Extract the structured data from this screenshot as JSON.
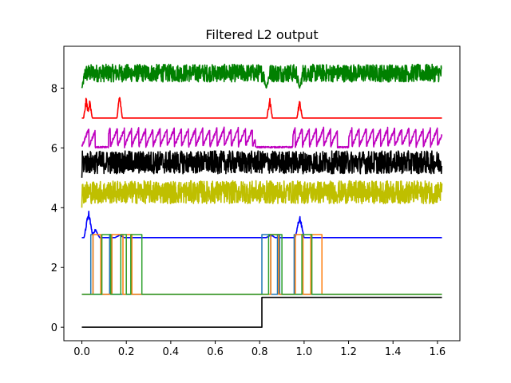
{
  "chart_data": {
    "type": "line",
    "title": "Filtered L2 output",
    "xlabel": "",
    "ylabel": "",
    "xlim": [
      -0.081,
      1.701
    ],
    "ylim": [
      -0.45,
      9.4
    ],
    "xticks": [
      0.0,
      0.2,
      0.4,
      0.6,
      0.8,
      1.0,
      1.2,
      1.4,
      1.6
    ],
    "xtick_labels": [
      "0.0",
      "0.2",
      "0.4",
      "0.6",
      "0.8",
      "1.0",
      "1.2",
      "1.4",
      "1.6"
    ],
    "yticks": [
      0,
      2,
      4,
      6,
      8
    ],
    "ytick_labels": [
      "0",
      "2",
      "4",
      "6",
      "8"
    ],
    "grid": false,
    "legend": "none",
    "series": [
      {
        "color": "#008000",
        "style": "noisy",
        "x_range": [
          0.0,
          1.62
        ],
        "baseline": 8.0,
        "values": {
          "band": [
            8.1,
            8.8
          ],
          "dips": [
            [
              0.0,
              8.0
            ],
            [
              0.83,
              8.0
            ],
            [
              0.98,
              8.0
            ]
          ]
        }
      },
      {
        "color": "#ff0000",
        "style": "spikes",
        "x_range": [
          0.0,
          1.62
        ],
        "baseline": 7.0,
        "values": {
          "spikes": [
            [
              0.02,
              7.75
            ],
            [
              0.035,
              7.65
            ],
            [
              0.17,
              7.9
            ],
            [
              0.845,
              7.8
            ],
            [
              0.98,
              7.7
            ]
          ]
        }
      },
      {
        "color": "#bf00bf",
        "style": "sawtooth",
        "x_range": [
          0.0,
          1.62
        ],
        "baseline": 6.0,
        "values": {
          "band": [
            6.0,
            6.7
          ],
          "flat_segments": [
            [
              0.06,
              0.12
            ],
            [
              0.78,
              0.95
            ],
            [
              1.15,
              1.2
            ]
          ]
        }
      },
      {
        "color": "#000000",
        "style": "noisy",
        "x_range": [
          0.0,
          1.62
        ],
        "baseline": 5.0,
        "values": {
          "band": [
            5.0,
            5.9
          ]
        }
      },
      {
        "color": "#bfbf00",
        "style": "noisy",
        "x_range": [
          0.0,
          1.62
        ],
        "baseline": 4.0,
        "values": {
          "band": [
            4.0,
            4.9
          ]
        }
      },
      {
        "color": "#0000ff",
        "style": "bumps",
        "x_range": [
          0.0,
          1.62
        ],
        "baseline": 3.0,
        "values": {
          "bumps": [
            [
              0.03,
              3.95
            ],
            [
              0.06,
              3.3
            ],
            [
              0.17,
              3.1
            ],
            [
              0.85,
              3.1
            ],
            [
              0.98,
              3.8
            ]
          ]
        }
      },
      {
        "color": "#1f77b4",
        "style": "pulses",
        "x_range": [
          0.0,
          1.62
        ],
        "baseline": 1.1,
        "high": 3.1,
        "values": {
          "pulses": [
            [
              0.04,
              0.05
            ],
            [
              0.125,
              0.135
            ],
            [
              0.81,
              0.85
            ],
            [
              0.88,
              0.89
            ],
            [
              0.955,
              0.96
            ]
          ]
        }
      },
      {
        "color": "#ff7f0e",
        "style": "pulses",
        "x_range": [
          0.0,
          1.62
        ],
        "baseline": 1.1,
        "high": 3.1,
        "values": {
          "pulses": [
            [
              0.05,
              0.085
            ],
            [
              0.135,
              0.185
            ],
            [
              0.2,
              0.225
            ],
            [
              0.85,
              0.885
            ],
            [
              0.96,
              0.995
            ],
            [
              1.03,
              1.08
            ]
          ]
        }
      },
      {
        "color": "#2ca02c",
        "style": "pulses",
        "x_range": [
          0.0,
          1.62
        ],
        "baseline": 1.1,
        "high": 3.1,
        "values": {
          "pulses": [
            [
              0.09,
              0.13
            ],
            [
              0.175,
              0.2
            ],
            [
              0.22,
              0.27
            ],
            [
              0.84,
              0.9
            ],
            [
              0.99,
              1.035
            ]
          ]
        }
      },
      {
        "color": "#000000",
        "style": "step",
        "x_range": [
          0.0,
          1.62
        ],
        "baseline": 0.0,
        "values": {
          "step_at": 0.81,
          "low": 0.0,
          "high": 1.0
        }
      }
    ]
  }
}
